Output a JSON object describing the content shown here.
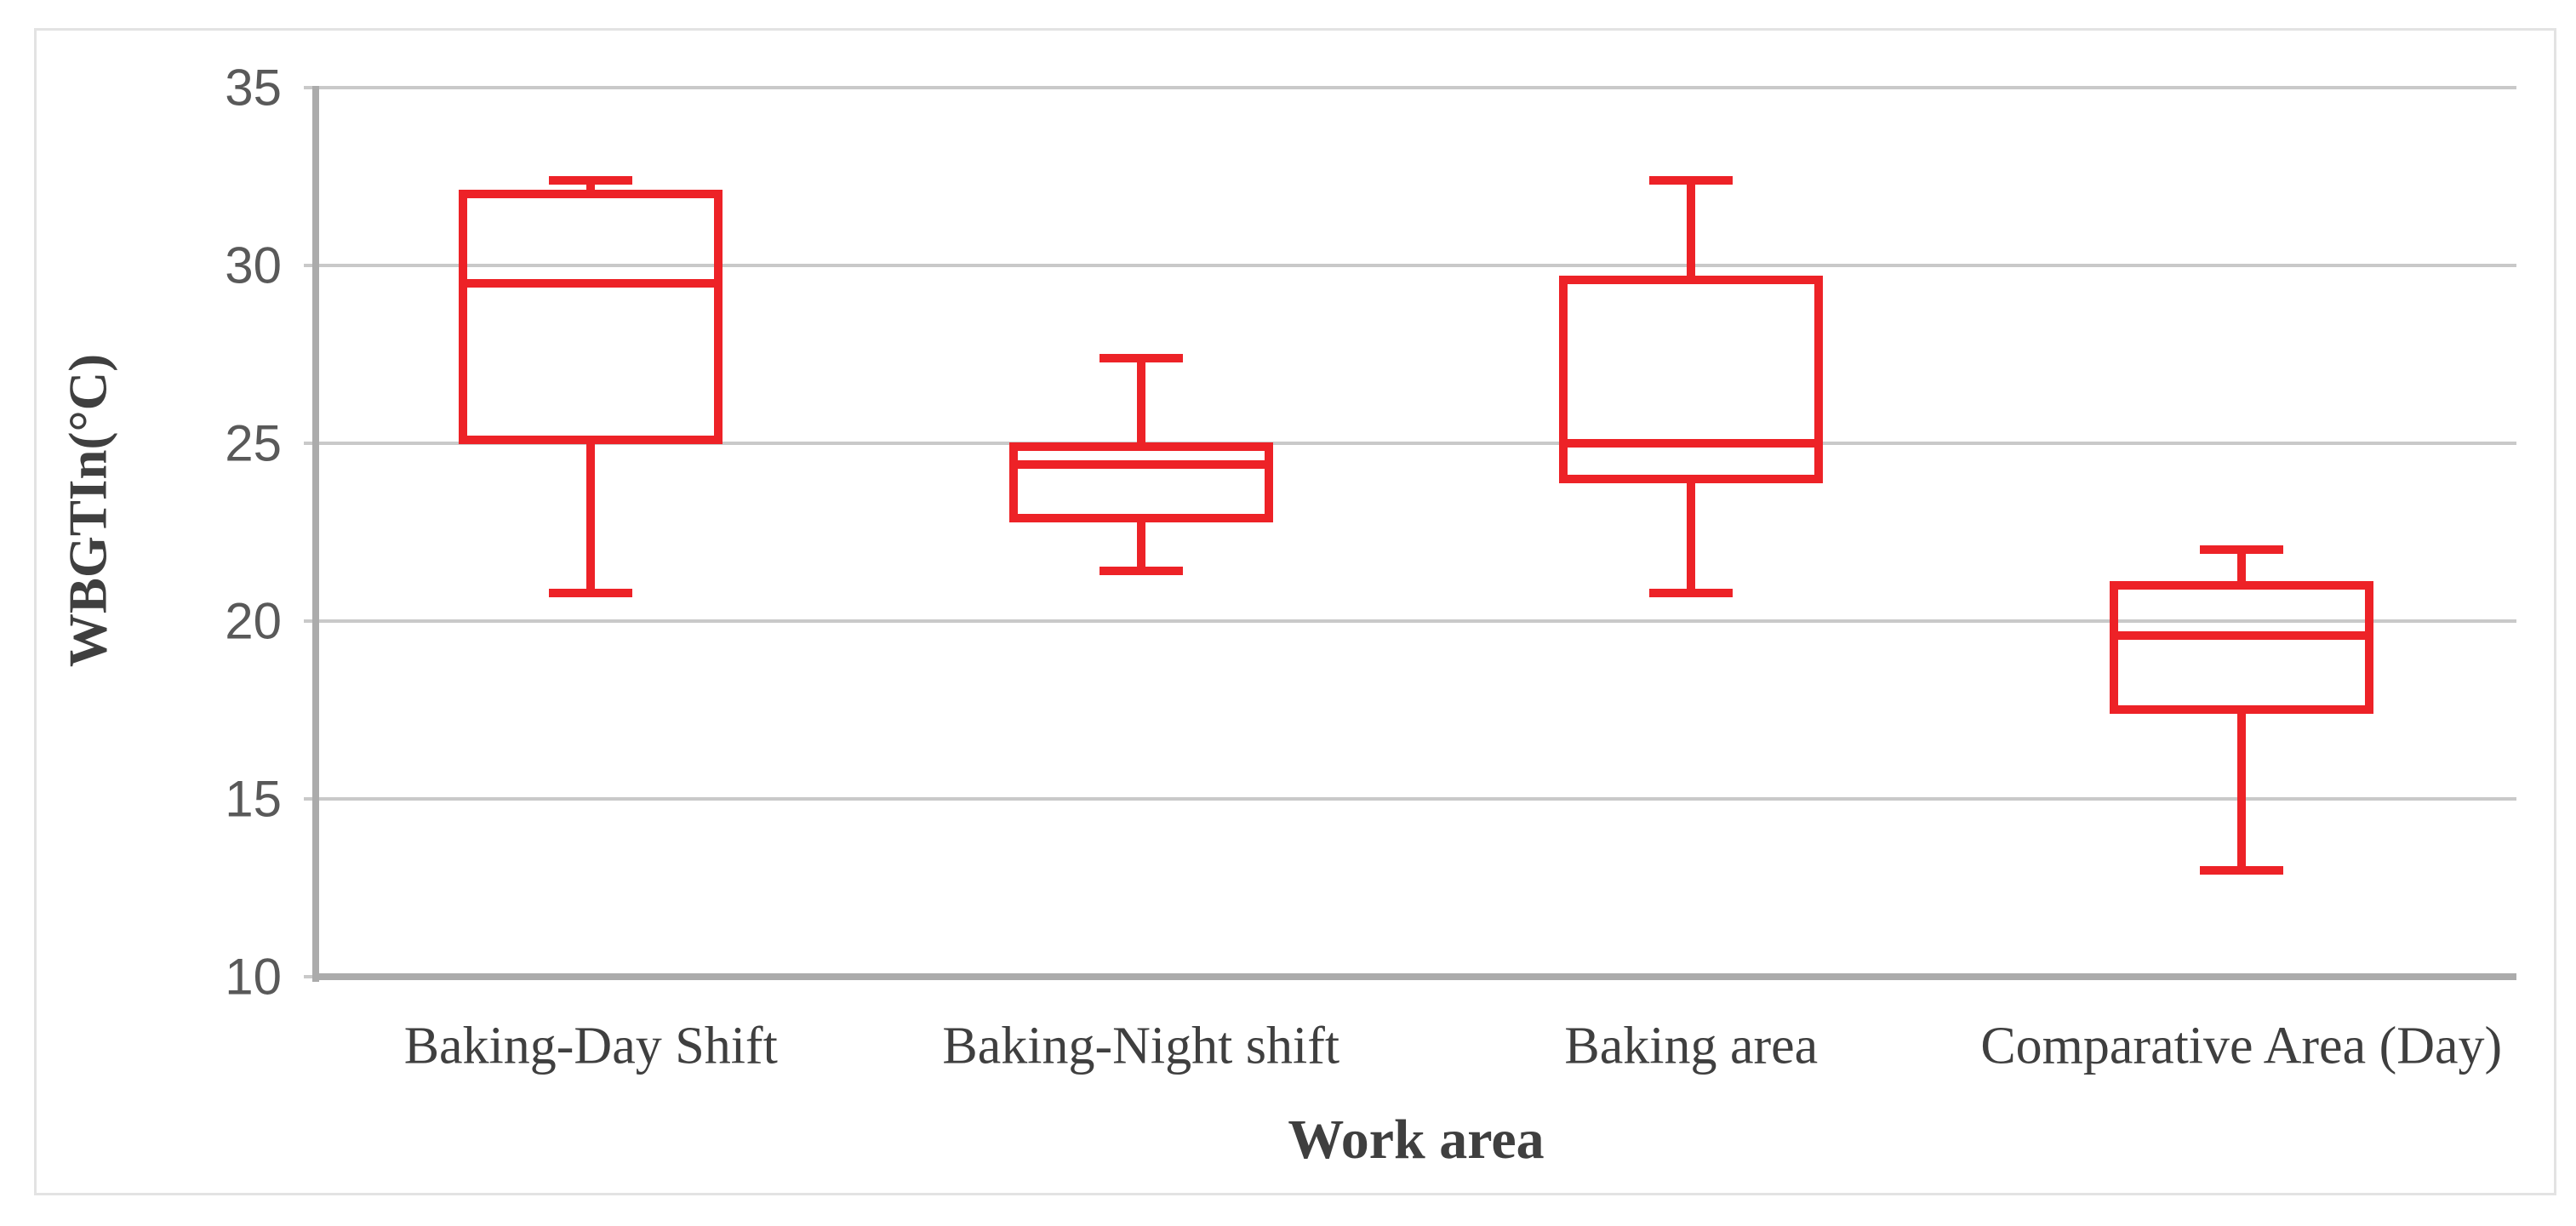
{
  "figure": {
    "background_color": "#ffffff",
    "frame_border_color": "#e3e3e3"
  },
  "chart_data": {
    "type": "box",
    "title": "",
    "xlabel": "Work area",
    "ylabel": "WBGTIn(°C)",
    "ylim": [
      10,
      35
    ],
    "yticks": [
      35,
      30,
      25,
      20,
      15,
      10
    ],
    "grid": "horizontal",
    "legend": "none",
    "box_color": "#ed2227",
    "gridline_color": "#c9c9c9",
    "axis_color": "#ababab",
    "tick_label_color": "#595959",
    "category_label_color": "#3f3f3f",
    "categories": [
      "Baking-Day Shift",
      "Baking-Night shift",
      "Baking area",
      "Comparative Area (Day)"
    ],
    "series": [
      {
        "name": "Baking-Day Shift",
        "min": 20.8,
        "q1": 25.1,
        "median": 29.5,
        "q3": 32.0,
        "max": 32.4
      },
      {
        "name": "Baking-Night shift",
        "min": 21.4,
        "q1": 22.9,
        "median": 24.4,
        "q3": 24.9,
        "max": 27.4
      },
      {
        "name": "Baking area",
        "min": 20.8,
        "q1": 24.0,
        "median": 25.0,
        "q3": 29.6,
        "max": 32.4
      },
      {
        "name": "Comparative Area (Day)",
        "min": 13.0,
        "q1": 17.5,
        "median": 19.6,
        "q3": 21.0,
        "max": 22.0
      }
    ]
  }
}
